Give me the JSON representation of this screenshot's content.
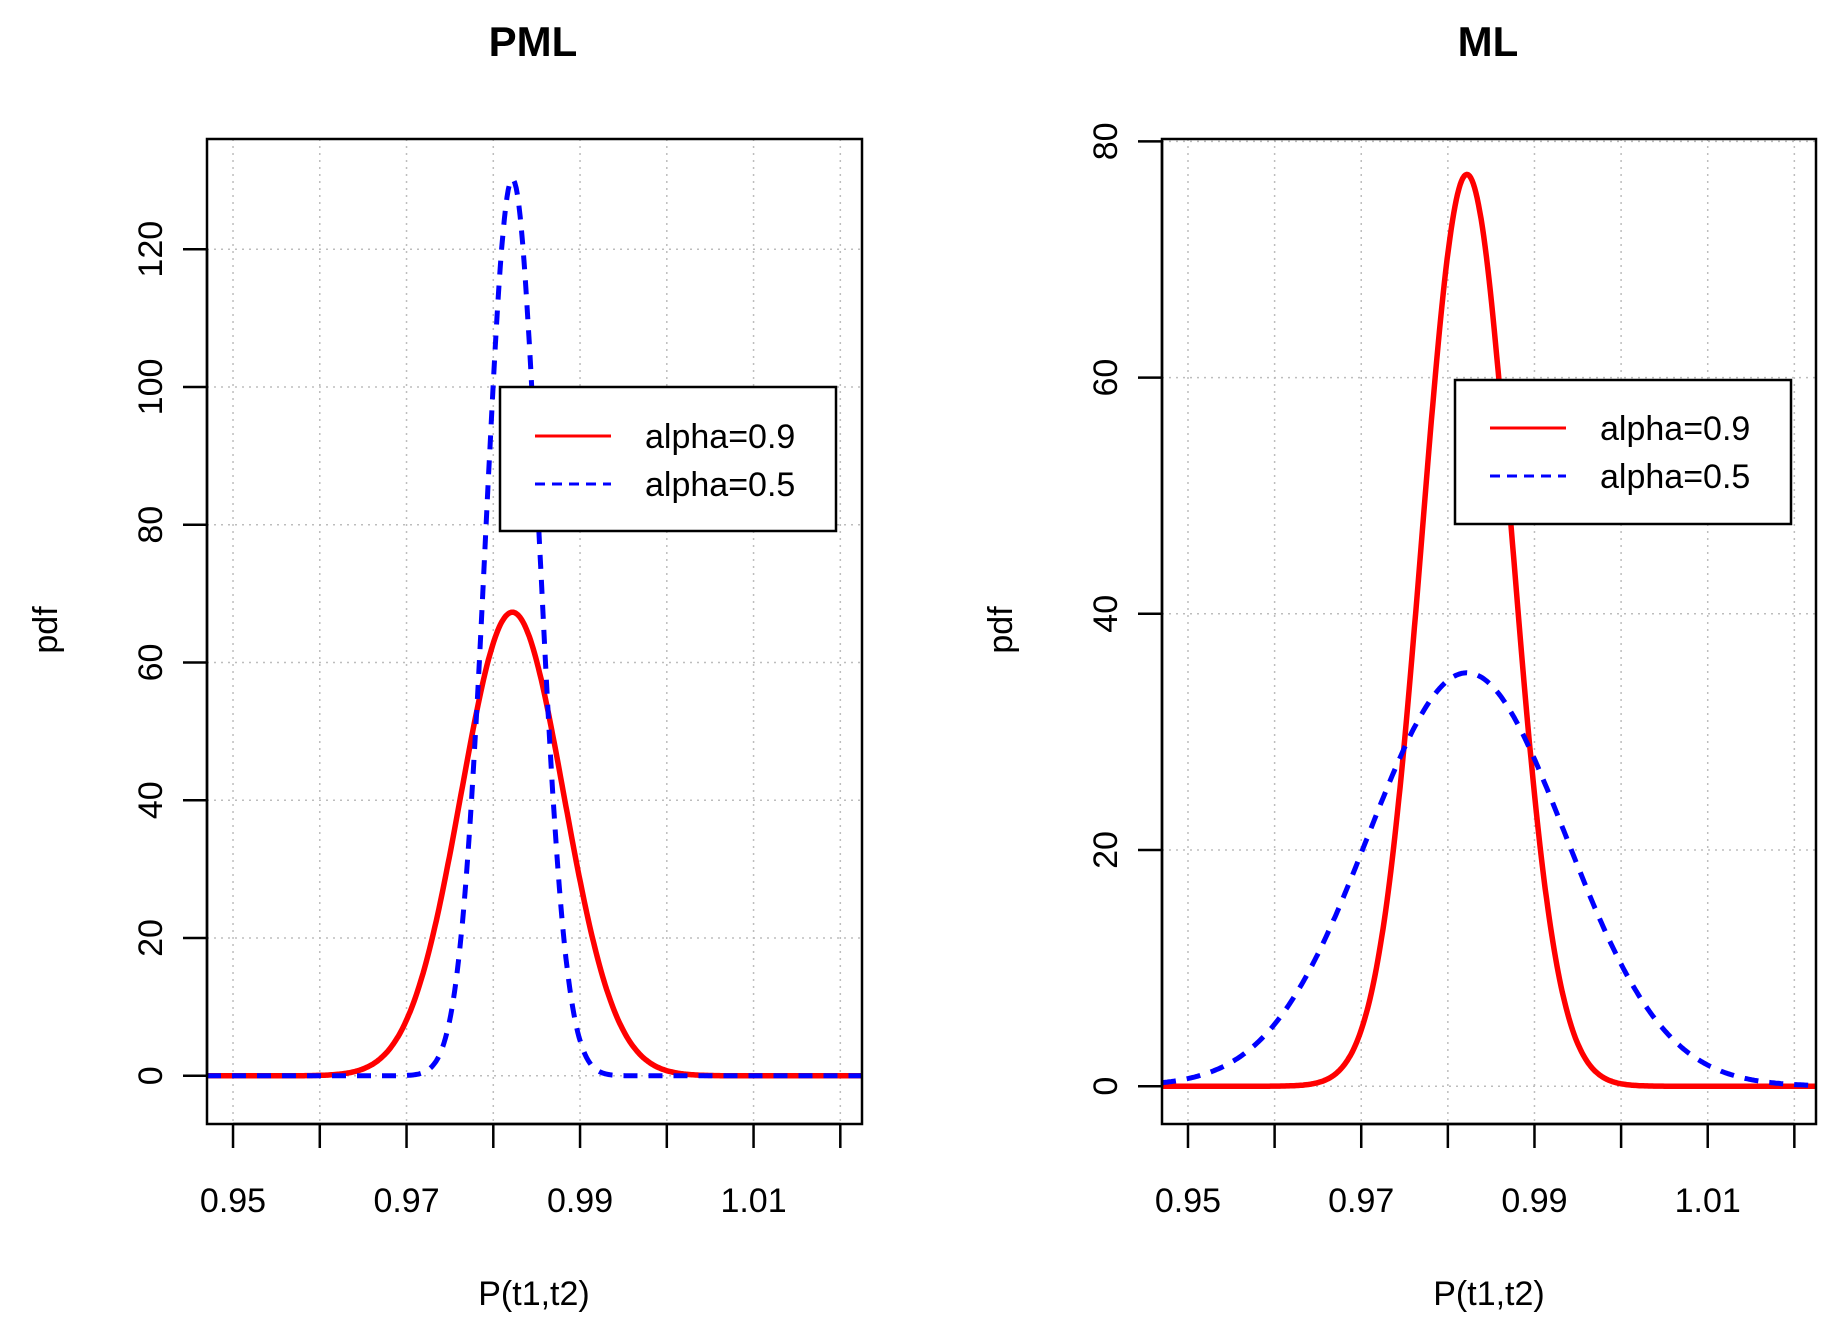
{
  "colors": {
    "red_series": "#ff0000",
    "blue_series": "#0000ff",
    "grid": "#bdbdbd",
    "axis": "#000000"
  },
  "chart_data": [
    {
      "type": "line",
      "title": "PML",
      "xlabel": "P(t1,t2)",
      "ylabel": "pdf",
      "xlim": [
        0.947,
        1.0225
      ],
      "ylim": [
        -7,
        136
      ],
      "xticks": [
        0.95,
        0.96,
        0.97,
        0.98,
        0.99,
        1.0,
        1.01,
        1.02
      ],
      "xtick_labels": [
        "0.95",
        "",
        "0.97",
        "",
        "0.99",
        "",
        "1.01",
        ""
      ],
      "yticks": [
        0,
        20,
        40,
        60,
        80,
        100,
        120
      ],
      "ytick_labels": [
        "0",
        "20",
        "40",
        "60",
        "80",
        "100",
        "120"
      ],
      "grid": true,
      "legend_position": "top-right",
      "series": [
        {
          "name": "alpha=0.9",
          "style": "solid",
          "mean": 0.9822,
          "peak": 67.3
        },
        {
          "name": "alpha=0.5",
          "style": "dashed",
          "mean": 0.9822,
          "peak": 130.2
        }
      ]
    },
    {
      "type": "line",
      "title": "ML",
      "xlabel": "P(t1,t2)",
      "ylabel": "pdf",
      "xlim": [
        0.947,
        1.0225
      ],
      "ylim": [
        -3.2,
        80.2
      ],
      "xticks": [
        0.95,
        0.96,
        0.97,
        0.98,
        0.99,
        1.0,
        1.01,
        1.02
      ],
      "xtick_labels": [
        "0.95",
        "",
        "0.97",
        "",
        "0.99",
        "",
        "1.01",
        ""
      ],
      "yticks": [
        0,
        20,
        40,
        60,
        80
      ],
      "ytick_labels": [
        "0",
        "20",
        "40",
        "60",
        "80"
      ],
      "grid": true,
      "legend_position": "top-right",
      "series": [
        {
          "name": "alpha=0.9",
          "style": "solid",
          "mean": 0.9822,
          "peak": 77.2
        },
        {
          "name": "alpha=0.5",
          "style": "dashed",
          "mean": 0.9822,
          "peak": 35.0
        }
      ]
    }
  ]
}
